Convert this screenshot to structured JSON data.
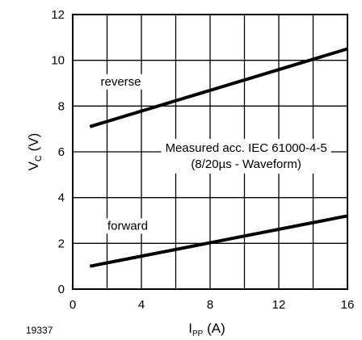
{
  "chart_data": {
    "type": "line",
    "xlabel_main": "I",
    "xlabel_sub": "PP",
    "xlabel_unit": " (A)",
    "ylabel_main": "V",
    "ylabel_sub": "C",
    "ylabel_unit": " (V)",
    "xlim": [
      0,
      16
    ],
    "ylim": [
      0,
      12
    ],
    "xticks": [
      0,
      4,
      8,
      12,
      16
    ],
    "yticks": [
      0,
      2,
      4,
      6,
      8,
      10,
      12
    ],
    "x_grid_step": 2,
    "y_grid_step": 2,
    "grid": true,
    "series": [
      {
        "name": "reverse",
        "x": [
          1,
          16
        ],
        "y": [
          7.1,
          10.5
        ]
      },
      {
        "name": "forward",
        "x": [
          1,
          16
        ],
        "y": [
          1.0,
          3.2
        ]
      }
    ],
    "annotation_lines": [
      "Measured acc. IEC 61000-4-5",
      "(8/20µs - Waveform)"
    ],
    "figure_id": "19337"
  }
}
